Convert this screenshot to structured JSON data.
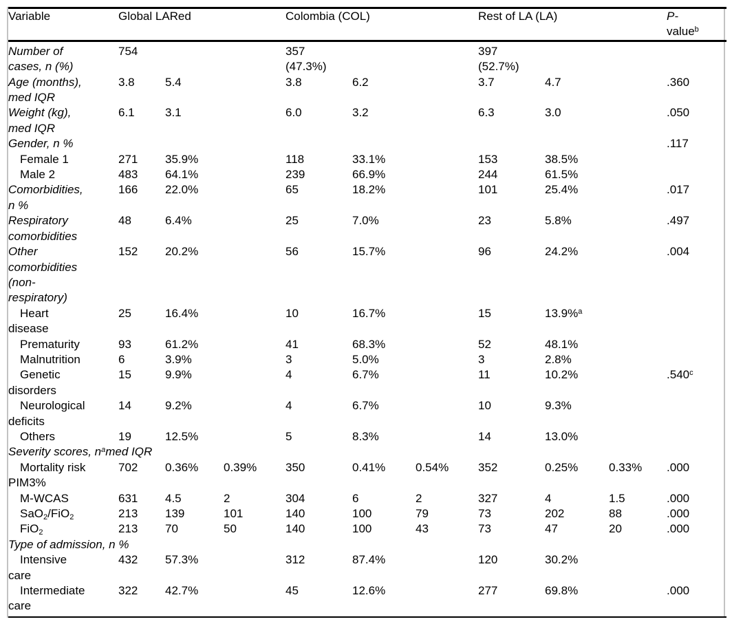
{
  "colors": {
    "text": "#000000",
    "rule": "#000000",
    "side_frame": "#c2c2c2",
    "background": "#ffffff"
  },
  "table": {
    "header": {
      "variable": "Variable",
      "global": "Global LARed",
      "colombia": "Colombia (COL)",
      "rest": "Rest of LA (LA)",
      "pvalue": [
        {
          "t": "P-",
          "i": true
        },
        {
          "br": true
        },
        {
          "t": "value"
        },
        {
          "sup": "b"
        }
      ]
    },
    "rows": [
      {
        "style": "main",
        "label": [
          {
            "t": "Number of"
          },
          {
            "br": true
          },
          {
            "t": "cases, n (%)"
          }
        ],
        "cells": [
          [
            {
              "t": "754"
            }
          ],
          [],
          [],
          [
            {
              "t": "357"
            },
            {
              "br": true
            },
            {
              "t": "(47.3%)"
            }
          ],
          [],
          [],
          [
            {
              "t": "397"
            },
            {
              "br": true
            },
            {
              "t": "(52.7%)"
            }
          ],
          [],
          [],
          []
        ]
      },
      {
        "style": "main",
        "label": [
          {
            "t": "Age (months),"
          },
          {
            "br": true
          },
          {
            "t": "med IQR"
          }
        ],
        "cells": [
          [
            {
              "t": "3.8"
            }
          ],
          [
            {
              "t": "5.4"
            }
          ],
          [],
          [
            {
              "t": "3.8"
            }
          ],
          [
            {
              "t": "6.2"
            }
          ],
          [],
          [
            {
              "t": "3.7"
            }
          ],
          [
            {
              "t": "4.7"
            }
          ],
          [],
          [
            {
              "t": ".360"
            }
          ]
        ]
      },
      {
        "style": "main",
        "label": [
          {
            "t": "Weight (kg),"
          },
          {
            "br": true
          },
          {
            "t": "med IQR"
          }
        ],
        "cells": [
          [
            {
              "t": "6.1"
            }
          ],
          [
            {
              "t": "3.1"
            }
          ],
          [],
          [
            {
              "t": "6.0"
            }
          ],
          [
            {
              "t": "3.2"
            }
          ],
          [],
          [
            {
              "t": "6.3"
            }
          ],
          [
            {
              "t": "3.0"
            }
          ],
          [],
          [
            {
              "t": ".050"
            }
          ]
        ]
      },
      {
        "style": "main",
        "label": [
          {
            "t": "Gender, n %"
          }
        ],
        "cells": [
          [],
          [],
          [],
          [],
          [],
          [],
          [],
          [],
          [],
          [
            {
              "t": ".117"
            }
          ]
        ]
      },
      {
        "style": "sub",
        "label": [
          {
            "t": "Female 1"
          }
        ],
        "cells": [
          [
            {
              "t": "271"
            }
          ],
          [
            {
              "t": "35.9%"
            }
          ],
          [],
          [
            {
              "t": "118"
            }
          ],
          [
            {
              "t": "33.1%"
            }
          ],
          [],
          [
            {
              "t": "153"
            }
          ],
          [
            {
              "t": "38.5%"
            }
          ],
          [],
          []
        ]
      },
      {
        "style": "sub",
        "label": [
          {
            "t": "Male 2"
          }
        ],
        "cells": [
          [
            {
              "t": "483"
            }
          ],
          [
            {
              "t": "64.1%"
            }
          ],
          [],
          [
            {
              "t": "239"
            }
          ],
          [
            {
              "t": "66.9%"
            }
          ],
          [],
          [
            {
              "t": "244"
            }
          ],
          [
            {
              "t": "61.5%"
            }
          ],
          [],
          []
        ]
      },
      {
        "style": "main",
        "label": [
          {
            "t": "Comorbidities,"
          },
          {
            "br": true
          },
          {
            "t": "n %"
          }
        ],
        "cells": [
          [
            {
              "t": "166"
            }
          ],
          [
            {
              "t": "22.0%"
            }
          ],
          [],
          [
            {
              "t": "65"
            }
          ],
          [
            {
              "t": "18.2%"
            }
          ],
          [],
          [
            {
              "t": "101"
            }
          ],
          [
            {
              "t": "25.4%"
            }
          ],
          [],
          [
            {
              "t": ".017"
            }
          ]
        ]
      },
      {
        "style": "main",
        "label": [
          {
            "t": "Respiratory"
          },
          {
            "br": true
          },
          {
            "t": "comorbidities"
          }
        ],
        "cells": [
          [
            {
              "t": "48"
            }
          ],
          [
            {
              "t": "6.4%"
            }
          ],
          [],
          [
            {
              "t": "25"
            }
          ],
          [
            {
              "t": "7.0%"
            }
          ],
          [],
          [
            {
              "t": "23"
            }
          ],
          [
            {
              "t": "5.8%"
            }
          ],
          [],
          [
            {
              "t": ".497"
            }
          ]
        ]
      },
      {
        "style": "main",
        "label": [
          {
            "t": "Other"
          },
          {
            "br": true
          },
          {
            "t": "comorbidities"
          },
          {
            "br": true
          },
          {
            "t": "(non-"
          },
          {
            "br": true
          },
          {
            "t": "respiratory)"
          }
        ],
        "cells": [
          [
            {
              "t": "152"
            }
          ],
          [
            {
              "t": "20.2%"
            }
          ],
          [],
          [
            {
              "t": "56"
            }
          ],
          [
            {
              "t": "15.7%"
            }
          ],
          [],
          [
            {
              "t": "96"
            }
          ],
          [
            {
              "t": "24.2%"
            }
          ],
          [],
          [
            {
              "t": ".004"
            }
          ]
        ]
      },
      {
        "style": "sub",
        "label": [
          {
            "t": "Heart"
          },
          {
            "br": true
          },
          {
            "t": "disease"
          }
        ],
        "cells": [
          [
            {
              "t": "25"
            }
          ],
          [
            {
              "t": "16.4%"
            }
          ],
          [],
          [
            {
              "t": "10"
            }
          ],
          [
            {
              "t": "16.7%"
            }
          ],
          [],
          [
            {
              "t": "15"
            }
          ],
          [
            {
              "t": "13.9%"
            },
            {
              "sup": "a"
            }
          ],
          [],
          []
        ]
      },
      {
        "style": "sub",
        "label": [
          {
            "t": "Prematurity"
          }
        ],
        "cells": [
          [
            {
              "t": "93"
            }
          ],
          [
            {
              "t": "61.2%"
            }
          ],
          [],
          [
            {
              "t": "41"
            }
          ],
          [
            {
              "t": "68.3%"
            }
          ],
          [],
          [
            {
              "t": "52"
            }
          ],
          [
            {
              "t": "48.1%"
            }
          ],
          [],
          []
        ]
      },
      {
        "style": "sub",
        "label": [
          {
            "t": "Malnutrition"
          }
        ],
        "cells": [
          [
            {
              "t": "6"
            }
          ],
          [
            {
              "t": "3.9%"
            }
          ],
          [],
          [
            {
              "t": "3"
            }
          ],
          [
            {
              "t": "5.0%"
            }
          ],
          [],
          [
            {
              "t": "3"
            }
          ],
          [
            {
              "t": "2.8%"
            }
          ],
          [],
          []
        ]
      },
      {
        "style": "sub",
        "label": [
          {
            "t": "Genetic"
          },
          {
            "br": true
          },
          {
            "t": "disorders"
          }
        ],
        "cells": [
          [
            {
              "t": "15"
            }
          ],
          [
            {
              "t": "9.9%"
            }
          ],
          [],
          [
            {
              "t": "4"
            }
          ],
          [
            {
              "t": "6.7%"
            }
          ],
          [],
          [
            {
              "t": "11"
            }
          ],
          [
            {
              "t": "10.2%"
            }
          ],
          [],
          [
            {
              "t": ".540"
            },
            {
              "sup": "c"
            }
          ]
        ]
      },
      {
        "style": "sub",
        "label": [
          {
            "t": "Neurological"
          },
          {
            "br": true
          },
          {
            "t": "deficits"
          }
        ],
        "cells": [
          [
            {
              "t": "14"
            }
          ],
          [
            {
              "t": "9.2%"
            }
          ],
          [],
          [
            {
              "t": "4"
            }
          ],
          [
            {
              "t": "6.7%"
            }
          ],
          [],
          [
            {
              "t": "10"
            }
          ],
          [
            {
              "t": "9.3%"
            }
          ],
          [],
          []
        ]
      },
      {
        "style": "sub",
        "label": [
          {
            "t": "Others"
          }
        ],
        "cells": [
          [
            {
              "t": "19"
            }
          ],
          [
            {
              "t": "12.5%"
            }
          ],
          [],
          [
            {
              "t": "5"
            }
          ],
          [
            {
              "t": "8.3%"
            }
          ],
          [],
          [
            {
              "t": "14"
            }
          ],
          [
            {
              "t": "13.0%"
            }
          ],
          [],
          []
        ]
      },
      {
        "style": "main",
        "label": [
          {
            "t": "Severity scores, n"
          },
          {
            "sup": "a"
          },
          {
            "t": "med IQR"
          }
        ],
        "cells": [
          [],
          [],
          [],
          [],
          [],
          [],
          [],
          [],
          [],
          []
        ]
      },
      {
        "style": "sub",
        "label": [
          {
            "t": "Mortality risk"
          },
          {
            "br": true
          },
          {
            "t": "PIM3%"
          }
        ],
        "cells": [
          [
            {
              "t": "702"
            }
          ],
          [
            {
              "t": "0.36%"
            }
          ],
          [
            {
              "t": "0.39%"
            }
          ],
          [
            {
              "t": "350"
            }
          ],
          [
            {
              "t": "0.41%"
            }
          ],
          [
            {
              "t": "0.54%"
            }
          ],
          [
            {
              "t": "352"
            }
          ],
          [
            {
              "t": "0.25%"
            }
          ],
          [
            {
              "t": "0.33%"
            }
          ],
          [
            {
              "t": ".000"
            }
          ]
        ]
      },
      {
        "style": "sub",
        "label": [
          {
            "t": "M-WCAS"
          }
        ],
        "cells": [
          [
            {
              "t": "631"
            }
          ],
          [
            {
              "t": "4.5"
            }
          ],
          [
            {
              "t": "2"
            }
          ],
          [
            {
              "t": "304"
            }
          ],
          [
            {
              "t": "6"
            }
          ],
          [
            {
              "t": "2"
            }
          ],
          [
            {
              "t": "327"
            }
          ],
          [
            {
              "t": "4"
            }
          ],
          [
            {
              "t": "1.5"
            }
          ],
          [
            {
              "t": ".000"
            }
          ]
        ]
      },
      {
        "style": "sub",
        "label": [
          {
            "t": "SaO"
          },
          {
            "sub": "2"
          },
          {
            "t": "/FiO"
          },
          {
            "sub": "2"
          }
        ],
        "cells": [
          [
            {
              "t": "213"
            }
          ],
          [
            {
              "t": "139"
            }
          ],
          [
            {
              "t": "101"
            }
          ],
          [
            {
              "t": "140"
            }
          ],
          [
            {
              "t": "100"
            }
          ],
          [
            {
              "t": "79"
            }
          ],
          [
            {
              "t": "73"
            }
          ],
          [
            {
              "t": "202"
            }
          ],
          [
            {
              "t": "88"
            }
          ],
          [
            {
              "t": ".000"
            }
          ]
        ]
      },
      {
        "style": "sub",
        "label": [
          {
            "t": "FiO"
          },
          {
            "sub": "2"
          }
        ],
        "cells": [
          [
            {
              "t": "213"
            }
          ],
          [
            {
              "t": "70"
            }
          ],
          [
            {
              "t": "50"
            }
          ],
          [
            {
              "t": "140"
            }
          ],
          [
            {
              "t": "100"
            }
          ],
          [
            {
              "t": "43"
            }
          ],
          [
            {
              "t": "73"
            }
          ],
          [
            {
              "t": "47"
            }
          ],
          [
            {
              "t": "20"
            }
          ],
          [
            {
              "t": ".000"
            }
          ]
        ]
      },
      {
        "style": "main",
        "label": [
          {
            "t": "Type of admission, n %"
          }
        ],
        "cells": [
          [],
          [],
          [],
          [],
          [],
          [],
          [],
          [],
          [],
          []
        ]
      },
      {
        "style": "sub",
        "label": [
          {
            "t": "Intensive"
          },
          {
            "br": true
          },
          {
            "t": "care"
          }
        ],
        "cells": [
          [
            {
              "t": "432"
            }
          ],
          [
            {
              "t": "57.3%"
            }
          ],
          [],
          [
            {
              "t": "312"
            }
          ],
          [
            {
              "t": "87.4%"
            }
          ],
          [],
          [
            {
              "t": "120"
            }
          ],
          [
            {
              "t": "30.2%"
            }
          ],
          [],
          []
        ]
      },
      {
        "style": "sub",
        "label": [
          {
            "t": "Intermediate"
          },
          {
            "br": true
          },
          {
            "t": "care"
          }
        ],
        "cells": [
          [
            {
              "t": "322"
            }
          ],
          [
            {
              "t": "42.7%"
            }
          ],
          [],
          [
            {
              "t": "45"
            }
          ],
          [
            {
              "t": "12.6%"
            }
          ],
          [],
          [
            {
              "t": "277"
            }
          ],
          [
            {
              "t": "69.8%"
            }
          ],
          [],
          [
            {
              "t": ".000"
            }
          ]
        ]
      }
    ]
  }
}
